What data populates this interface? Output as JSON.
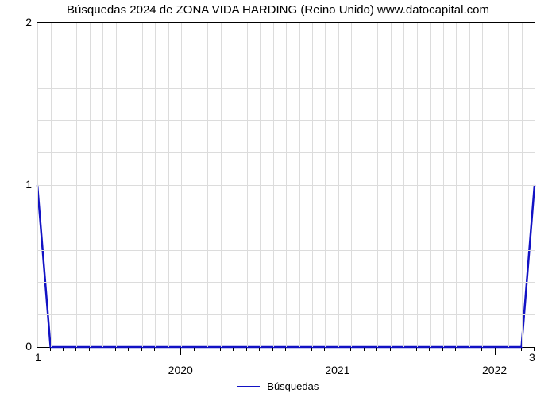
{
  "chart": {
    "type": "line",
    "title": "Búsquedas 2024 de ZONA VIDA HARDING (Reino Unido) www.datocapital.com",
    "title_fontsize": 15,
    "background_color": "#ffffff",
    "grid_color": "#dcdcdc",
    "axis_color": "#000000",
    "label_fontsize": 14,
    "x_year_ticks": [
      2020,
      2021,
      2022
    ],
    "x_month_minor_count": 12,
    "x_data_min": 2019.083,
    "x_data_max": 2022.25,
    "y_ticks": [
      0,
      1,
      2
    ],
    "y_minor_per_major": 5,
    "ylim_min": 0,
    "ylim_max": 2,
    "corner_bottom_left": "1",
    "corner_bottom_right": "3",
    "series": {
      "label": "Búsquedas",
      "color": "#1212c4",
      "line_width": 2.5,
      "points_x": [
        2019.083,
        2019.167,
        2022.167,
        2022.25
      ],
      "points_y": [
        1.0,
        0.0,
        0.0,
        1.0
      ]
    }
  }
}
